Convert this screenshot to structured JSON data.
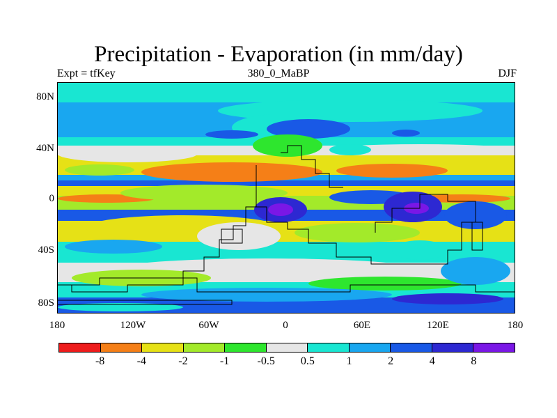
{
  "title": "Precipitation - Evaporation (in mm/day)",
  "subtitle_left": "Expt = tfKey",
  "subtitle_center": "380_0_MaBP",
  "subtitle_right": "DJF",
  "y_ticks": [
    "80N",
    "40N",
    "0",
    "40S",
    "80S"
  ],
  "x_ticks": [
    "180",
    "120W",
    "60W",
    "0",
    "60E",
    "120E",
    "180"
  ],
  "colorbar": {
    "colors": [
      "#ee1c1c",
      "#f57f17",
      "#e6e116",
      "#a3ea2a",
      "#2ee62e",
      "#e6e6e6",
      "#19e6d2",
      "#19a7f0",
      "#1959e6",
      "#2d28d2",
      "#7a17e6"
    ],
    "labels": [
      "-8",
      "-4",
      "-2",
      "-1",
      "-0.5",
      "0.5",
      "1",
      "2",
      "4",
      "8"
    ]
  }
}
